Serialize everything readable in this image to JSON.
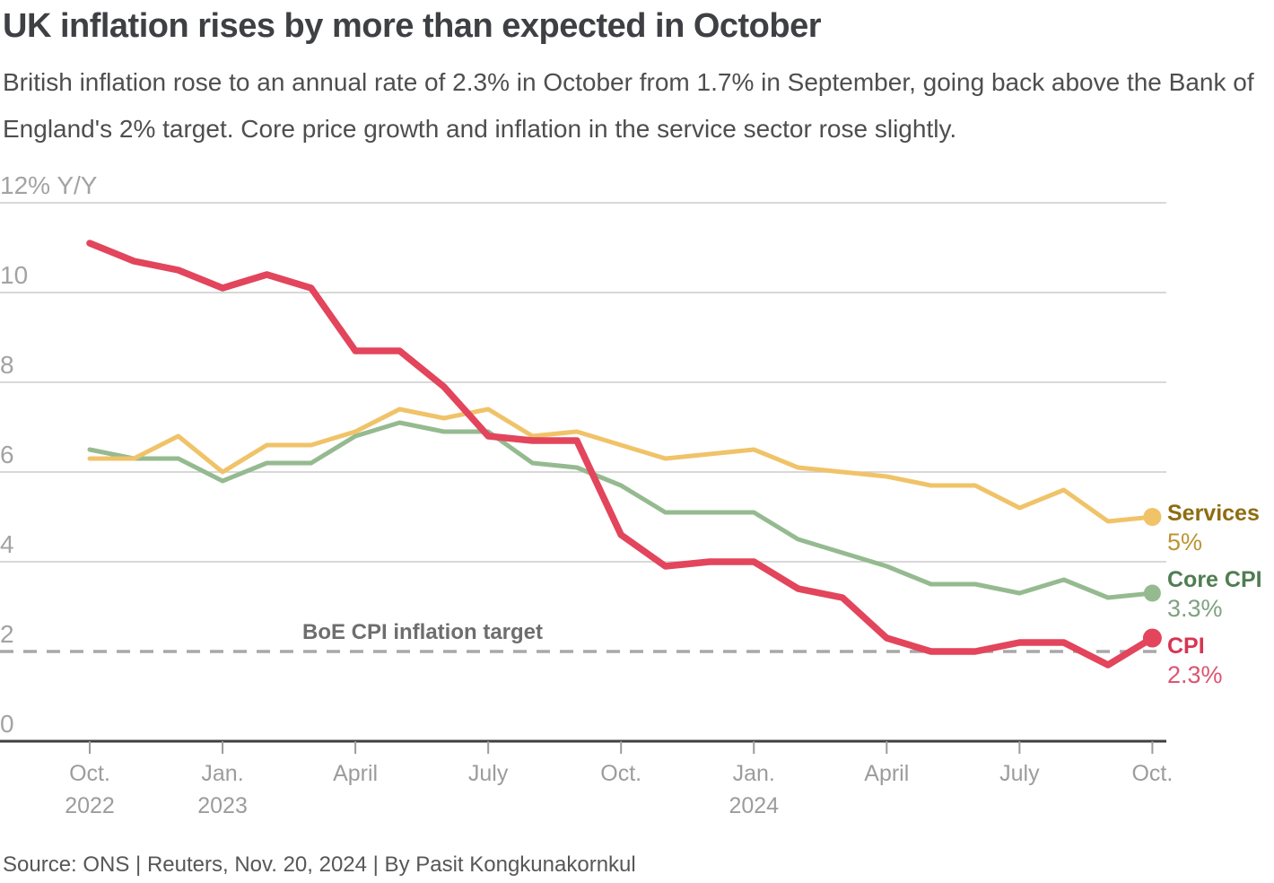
{
  "header": {
    "title": "UK inflation rises by more than expected in October",
    "subtitle": "British inflation rose to an annual rate of 2.3% in October from 1.7% in September, going back above the Bank of England's 2% target. Core price growth and inflation in the service sector rose slightly."
  },
  "footer": {
    "source": "Source: ONS | Reuters, Nov. 20, 2024 | By Pasit Kongkunakornkul"
  },
  "colors": {
    "title_text": "#3e4044",
    "subtitle_text": "#4e4e4e",
    "axis_line": "#3f3f3f",
    "gridline": "#cccccc",
    "tick_label": "#9c9c9c",
    "target_dashed": "#a8a8a8",
    "boe_label_text": "#6e6e6e",
    "source_text": "#575757"
  },
  "chart_data": {
    "type": "line",
    "title": "UK inflation rises by more than expected in October",
    "x_start": "Oct. 2022",
    "x_end": "Oct. 2024",
    "frequency": "monthly",
    "ylim": [
      0,
      12
    ],
    "grid": true,
    "legend_position": "right-of-line-ends",
    "yticks": [
      {
        "value": 12,
        "label": "12% Y/Y"
      },
      {
        "value": 10,
        "label": "10"
      },
      {
        "value": 8,
        "label": "8"
      },
      {
        "value": 6,
        "label": "6"
      },
      {
        "value": 4,
        "label": "4"
      },
      {
        "value": 2,
        "label": "2"
      },
      {
        "value": 0,
        "label": "0"
      }
    ],
    "xticks": [
      {
        "month_index": 0,
        "line1": "Oct.",
        "line2": "2022"
      },
      {
        "month_index": 3,
        "line1": "Jan.",
        "line2": "2023"
      },
      {
        "month_index": 6,
        "line1": "April",
        "line2": ""
      },
      {
        "month_index": 9,
        "line1": "July",
        "line2": ""
      },
      {
        "month_index": 12,
        "line1": "Oct.",
        "line2": ""
      },
      {
        "month_index": 15,
        "line1": "Jan.",
        "line2": "2024"
      },
      {
        "month_index": 18,
        "line1": "April",
        "line2": ""
      },
      {
        "month_index": 21,
        "line1": "July",
        "line2": ""
      },
      {
        "month_index": 24,
        "line1": "Oct.",
        "line2": ""
      }
    ],
    "series": [
      {
        "name": "Services",
        "end_value_label": "5%",
        "end_value": 5.0,
        "color": "#f0c369",
        "label_color": "#8f6c11",
        "value_color": "#bc9433",
        "values": [
          6.3,
          6.3,
          6.8,
          6.0,
          6.6,
          6.6,
          6.9,
          7.4,
          7.2,
          7.4,
          6.8,
          6.9,
          6.6,
          6.3,
          6.4,
          6.5,
          6.1,
          6.0,
          5.9,
          5.7,
          5.7,
          5.2,
          5.6,
          4.9,
          5.0
        ]
      },
      {
        "name": "Core CPI",
        "end_value_label": "3.3%",
        "end_value": 3.3,
        "color": "#95ba90",
        "label_color": "#4f7d53",
        "value_color": "#7fa182",
        "values": [
          6.5,
          6.3,
          6.3,
          5.8,
          6.2,
          6.2,
          6.8,
          7.1,
          6.9,
          6.9,
          6.2,
          6.1,
          5.7,
          5.1,
          5.1,
          5.1,
          4.5,
          4.2,
          3.9,
          3.5,
          3.5,
          3.3,
          3.6,
          3.2,
          3.3
        ]
      },
      {
        "name": "CPI",
        "end_value_label": "2.3%",
        "end_value": 2.3,
        "color": "#e2455c",
        "label_color": "#d63553",
        "value_color": "#db5672",
        "values": [
          11.1,
          10.7,
          10.5,
          10.1,
          10.4,
          10.1,
          8.7,
          8.7,
          7.9,
          6.8,
          6.7,
          6.7,
          4.6,
          3.9,
          4.0,
          4.0,
          3.4,
          3.2,
          2.3,
          2.0,
          2.0,
          2.2,
          2.2,
          1.7,
          2.3
        ]
      }
    ],
    "target_line": {
      "label": "BoE CPI inflation target",
      "value": 2,
      "style": "dashed",
      "color": "#a8a8a8"
    }
  }
}
